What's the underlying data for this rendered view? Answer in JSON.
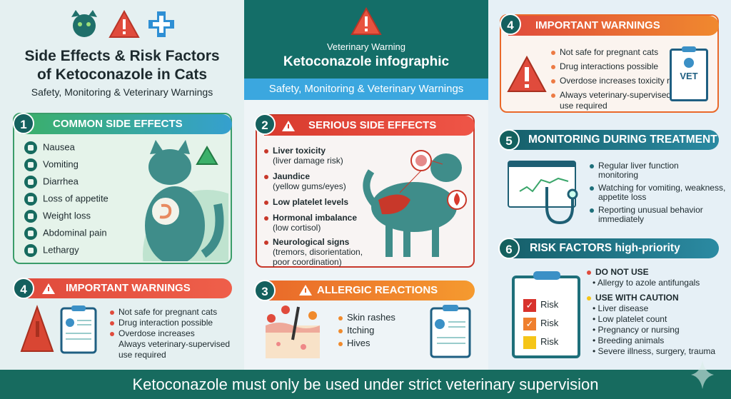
{
  "header": {
    "title_line1": "Side Effects & Risk Factors",
    "title_line2": "of Ketoconazole in Cats",
    "subtitle": "Safety, Monitoring & Veterinary Warnings",
    "center_kicker": "Veterinary Warning",
    "center_title": "Ketoconazole infographic",
    "center_subtitle": "Safety, Monitoring & Veterinary Warnings"
  },
  "colors": {
    "teal": "#146e68",
    "blue": "#3ba7df",
    "green": "#3bb06a",
    "red": "#e04b3c",
    "orange": "#f08a2c"
  },
  "common": {
    "number": "1",
    "title": "COMMON SIDE EFFECTS",
    "items": [
      "Nausea",
      "Vomiting",
      "Diarrhea",
      "Loss of appetite",
      "Weight loss",
      "Abdominal pain",
      "Lethargy"
    ]
  },
  "warnings_left": {
    "number": "4",
    "title": "IMPORTANT WARNINGS",
    "items": [
      "Not safe for pregnant cats",
      "Drug interaction possible",
      "Overdose increases",
      "Always veterinary-supervised",
      "use required"
    ]
  },
  "serious": {
    "number": "2",
    "title": "SERIOUS SIDE EFFECTS",
    "items": [
      {
        "name": "Liver toxicity",
        "detail": "(liver damage risk)"
      },
      {
        "name": "Jaundice",
        "detail": "(yellow gums/eyes)"
      },
      {
        "name": "Low platelet levels",
        "detail": ""
      },
      {
        "name": "Hormonal imbalance",
        "detail": "(low cortisol)"
      },
      {
        "name": "Neurological signs",
        "detail": "(tremors, disorientation,",
        "detail2": "poor coordination)"
      }
    ]
  },
  "allergic": {
    "number": "3",
    "title": "ALLERGIC REACTIONS",
    "items": [
      "Skin rashes",
      "Itching",
      "Hives"
    ]
  },
  "warnings_right": {
    "number": "4",
    "title": "IMPORTANT WARNINGS",
    "items": [
      "Not safe for pregnant cats",
      "Drug interactions possible",
      "Overdose increases toxicity risk",
      "Always veterinary-supervised",
      "use required"
    ],
    "vet_label": "VET"
  },
  "monitoring": {
    "number": "5",
    "title": "MONITORING DURING TREATMENT",
    "items": [
      [
        "Regular liver function",
        "monitoring"
      ],
      [
        "Watching for vomiting, weakness,",
        "appetite loss"
      ],
      [
        "Reporting unusual behavior",
        "immediately"
      ]
    ]
  },
  "risk": {
    "number": "6",
    "title": "RISK FACTORS high-priority",
    "checklist": [
      "Risk",
      "Risk",
      "Risk"
    ],
    "do_not_use": "DO NOT USE",
    "do_not_use_items": [
      "Allergy to azole antifungals"
    ],
    "caution": "USE WITH CAUTION",
    "caution_items": [
      "Liver disease",
      "Low platelet count",
      "Pregnancy or nursing",
      "Breeding animals",
      "Severe illness, surgery, trauma"
    ]
  },
  "footer": "Ketoconazole must only be used under strict veterinary supervision"
}
